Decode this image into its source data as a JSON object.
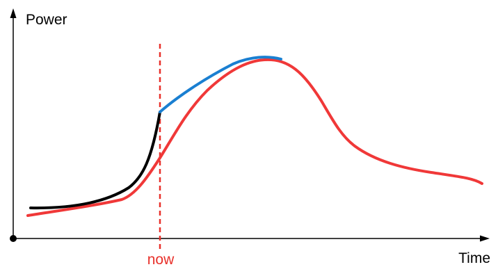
{
  "diagram": {
    "y_axis_label": "Power",
    "x_axis_label": "Time",
    "now_label": "now",
    "colors": {
      "axes": "#000000",
      "history_curve": "#000000",
      "forecast_curve": "#1a7fd1",
      "actual_curve": "#f03838",
      "now_marker": "#e8302a",
      "now_label": "#e8302a"
    }
  }
}
